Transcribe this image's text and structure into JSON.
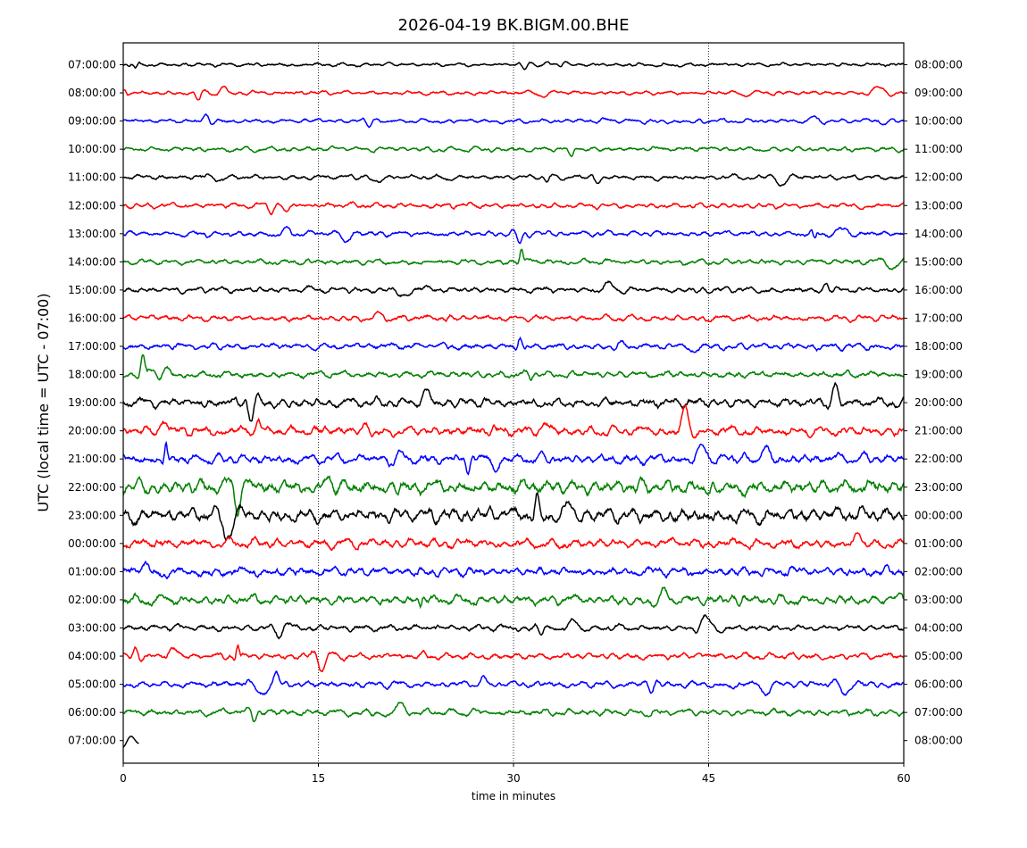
{
  "chart_data": {
    "type": "line",
    "title": "2026-04-19 BK.BIGM.00.BHE",
    "xlabel": "time in minutes",
    "ylabel": "UTC (local time = UTC - 07:00)",
    "xlim": [
      0,
      60
    ],
    "x_ticks": [
      0,
      15,
      30,
      45,
      60
    ],
    "x_tick_labels": [
      "0",
      "15",
      "30",
      "45",
      "60"
    ],
    "vertical_grid_at": [
      15,
      30,
      45
    ],
    "grid_style": "dotted",
    "left_tick_labels": [
      "07:00:00",
      "08:00:00",
      "09:00:00",
      "10:00:00",
      "11:00:00",
      "12:00:00",
      "13:00:00",
      "14:00:00",
      "15:00:00",
      "16:00:00",
      "17:00:00",
      "18:00:00",
      "19:00:00",
      "20:00:00",
      "21:00:00",
      "22:00:00",
      "23:00:00",
      "00:00:00",
      "01:00:00",
      "02:00:00",
      "03:00:00",
      "04:00:00",
      "05:00:00",
      "06:00:00",
      "07:00:00"
    ],
    "right_tick_labels": [
      "08:00:00",
      "09:00:00",
      "10:00:00",
      "11:00:00",
      "12:00:00",
      "13:00:00",
      "14:00:00",
      "15:00:00",
      "16:00:00",
      "17:00:00",
      "18:00:00",
      "19:00:00",
      "20:00:00",
      "21:00:00",
      "22:00:00",
      "23:00:00",
      "00:00:00",
      "01:00:00",
      "02:00:00",
      "03:00:00",
      "04:00:00",
      "05:00:00",
      "06:00:00",
      "07:00:00",
      "08:00:00"
    ],
    "trace_colors": [
      "#000000",
      "#ff0000",
      "#0000ff",
      "#008000"
    ],
    "last_trace_end_minute": 1.2
  }
}
